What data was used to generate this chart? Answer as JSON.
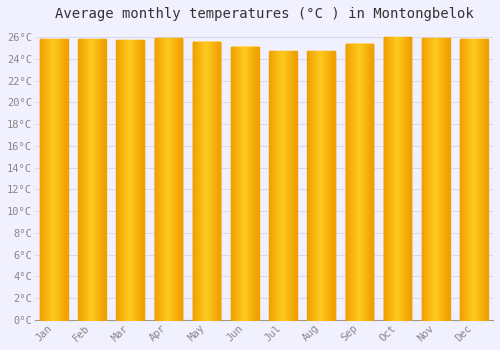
{
  "title": "Average monthly temperatures (°C ) in Montongbelok",
  "months": [
    "Jan",
    "Feb",
    "Mar",
    "Apr",
    "May",
    "Jun",
    "Jul",
    "Aug",
    "Sep",
    "Oct",
    "Nov",
    "Dec"
  ],
  "temperatures": [
    25.8,
    25.8,
    25.7,
    25.9,
    25.6,
    25.1,
    24.7,
    24.7,
    25.4,
    26.0,
    25.9,
    25.8
  ],
  "bar_color_center": "#FFD060",
  "bar_color_edge": "#F0A000",
  "ylim": [
    0,
    27
  ],
  "ytick_step": 2,
  "background_color": "#F0F0FF",
  "grid_color": "#D8D8E8",
  "title_fontsize": 10,
  "tick_fontsize": 7.5,
  "font_family": "monospace"
}
